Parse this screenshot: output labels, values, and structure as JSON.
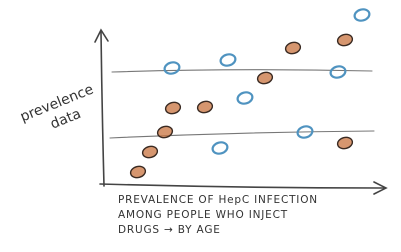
{
  "chart_data": {
    "type": "scatter",
    "ylabel": [
      "prevelence",
      "data"
    ],
    "xlabel": [
      "PREVALENCE OF HepC INFECTION",
      "AMONG PEOPLE WHO INJECT",
      "DRUGS → BY AGE"
    ],
    "xlim": [
      0,
      300
    ],
    "ylim": [
      0,
      175
    ],
    "series": [
      {
        "color": "#4f93c0",
        "x": [
          262,
          72,
          128,
          238,
          145,
          120,
          205
        ],
        "values": [
          170,
          117,
          125,
          113,
          87,
          37,
          53
        ]
      },
      {
        "color": "#c8733f",
        "x": [
          193,
          245,
          165,
          73,
          105,
          65,
          50,
          38,
          245
        ],
        "values": [
          137,
          145,
          107,
          77,
          78,
          53,
          33,
          13,
          42
        ]
      }
    ]
  }
}
